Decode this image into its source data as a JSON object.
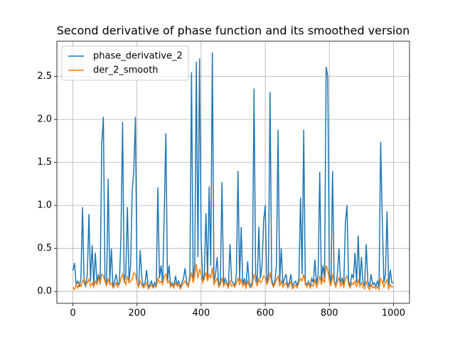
{
  "chart_data": {
    "type": "line",
    "title": "Second derivative of phase function and its smoothed version",
    "x": [
      0,
      5,
      10,
      15,
      20,
      25,
      30,
      35,
      40,
      45,
      50,
      55,
      60,
      65,
      70,
      75,
      80,
      85,
      90,
      95,
      100,
      105,
      110,
      115,
      120,
      125,
      130,
      135,
      140,
      145,
      150,
      155,
      160,
      165,
      170,
      175,
      180,
      185,
      190,
      195,
      200,
      205,
      210,
      215,
      220,
      225,
      230,
      235,
      240,
      245,
      250,
      255,
      260,
      265,
      270,
      275,
      280,
      285,
      290,
      295,
      300,
      305,
      310,
      315,
      320,
      325,
      330,
      335,
      340,
      345,
      350,
      355,
      360,
      365,
      370,
      375,
      380,
      385,
      390,
      395,
      400,
      405,
      410,
      415,
      420,
      425,
      430,
      435,
      440,
      445,
      450,
      455,
      460,
      465,
      470,
      475,
      480,
      485,
      490,
      495,
      500,
      505,
      510,
      515,
      520,
      525,
      530,
      535,
      540,
      545,
      550,
      555,
      560,
      565,
      570,
      575,
      580,
      585,
      590,
      595,
      600,
      605,
      610,
      615,
      620,
      625,
      630,
      635,
      640,
      645,
      650,
      655,
      660,
      665,
      670,
      675,
      680,
      685,
      690,
      695,
      700,
      705,
      710,
      715,
      720,
      725,
      730,
      735,
      740,
      745,
      750,
      755,
      760,
      765,
      770,
      775,
      780,
      785,
      790,
      795,
      800,
      805,
      810,
      815,
      820,
      825,
      830,
      835,
      840,
      845,
      850,
      855,
      860,
      865,
      870,
      875,
      880,
      885,
      890,
      895,
      900,
      905,
      910,
      915,
      920,
      925,
      930,
      935,
      940,
      945,
      950,
      955,
      960,
      965,
      970,
      975,
      980,
      985,
      990,
      995,
      1000
    ],
    "series": [
      {
        "name": "phase_derivative_2",
        "color": "#1f77b4",
        "values": [
          0.24,
          0.33,
          0.08,
          0.12,
          0.05,
          0.15,
          0.98,
          0.1,
          0.06,
          0.2,
          0.9,
          0.12,
          0.54,
          0.07,
          0.45,
          0.1,
          0.2,
          0.08,
          1.72,
          2.03,
          0.15,
          0.06,
          1.31,
          0.1,
          0.5,
          0.05,
          0.12,
          0.2,
          0.08,
          0.1,
          0.65,
          1.97,
          0.1,
          0.2,
          0.98,
          0.12,
          0.3,
          1.17,
          1.4,
          2.03,
          0.1,
          0.05,
          0.48,
          0.15,
          0.06,
          0.1,
          0.25,
          0.04,
          0.08,
          0.12,
          0.05,
          0.1,
          0.06,
          1.21,
          0.15,
          0.3,
          0.1,
          0.91,
          1.84,
          0.12,
          0.3,
          0.06,
          0.1,
          0.05,
          0.18,
          0.08,
          0.12,
          0.05,
          0.1,
          0.15,
          0.27,
          0.1,
          0.06,
          0.2,
          2.55,
          0.15,
          0.3,
          2.67,
          0.4,
          2.71,
          0.59,
          0.12,
          0.2,
          0.91,
          0.15,
          1.22,
          0.3,
          2.78,
          0.1,
          0.2,
          0.4,
          0.06,
          0.12,
          1.27,
          0.08,
          0.15,
          0.1,
          0.05,
          0.55,
          0.12,
          0.1,
          0.06,
          0.2,
          1.4,
          0.12,
          0.75,
          0.08,
          0.15,
          0.05,
          0.35,
          0.1,
          0.06,
          0.12,
          2.36,
          0.2,
          0.1,
          0.75,
          0.15,
          0.3,
          0.82,
          1.0,
          0.1,
          0.2,
          2.32,
          0.15,
          0.06,
          0.12,
          0.3,
          1.88,
          0.1,
          0.5,
          0.08,
          0.15,
          0.2,
          0.06,
          0.1,
          0.2,
          0.05,
          0.1,
          0.12,
          0.06,
          0.15,
          1.09,
          0.2,
          1.88,
          0.1,
          0.08,
          0.12,
          0.05,
          0.15,
          0.1,
          0.37,
          0.08,
          0.2,
          1.39,
          0.12,
          0.3,
          0.15,
          2.61,
          2.5,
          0.2,
          0.1,
          1.4,
          0.12,
          0.06,
          0.2,
          0.5,
          0.1,
          0.15,
          0.08,
          0.8,
          1.0,
          0.12,
          0.06,
          0.2,
          0.15,
          0.45,
          0.1,
          0.65,
          0.08,
          0.4,
          0.1,
          0.06,
          0.55,
          0.12,
          0.05,
          0.2,
          0.08,
          0.1,
          0.06,
          0.12,
          0.05,
          1.74,
          0.85,
          0.1,
          0.2,
          0.93,
          0.06,
          0.25,
          0.1,
          0.1
        ]
      },
      {
        "name": "der_2_smooth",
        "color": "#ff7f0e",
        "values": [
          0.05,
          0.02,
          0.08,
          0.04,
          0.1,
          0.06,
          0.12,
          0.15,
          0.08,
          0.1,
          0.14,
          0.06,
          0.1,
          0.05,
          0.12,
          0.08,
          0.15,
          0.1,
          0.2,
          0.18,
          0.12,
          0.06,
          0.15,
          0.08,
          0.1,
          0.04,
          0.06,
          0.1,
          0.05,
          0.08,
          0.15,
          0.2,
          0.12,
          0.08,
          0.18,
          0.1,
          0.12,
          0.14,
          0.22,
          0.2,
          0.1,
          0.05,
          0.12,
          0.08,
          0.04,
          0.06,
          0.1,
          0.03,
          0.05,
          0.08,
          0.04,
          0.06,
          0.05,
          0.15,
          0.1,
          0.12,
          0.08,
          0.18,
          0.2,
          0.1,
          0.12,
          0.05,
          0.08,
          0.04,
          0.1,
          0.06,
          0.08,
          0.03,
          0.06,
          0.1,
          0.12,
          0.08,
          0.05,
          0.14,
          0.22,
          0.1,
          0.18,
          0.32,
          0.15,
          0.26,
          0.2,
          0.1,
          0.15,
          0.22,
          0.12,
          0.2,
          0.15,
          0.28,
          0.08,
          0.12,
          0.15,
          0.05,
          0.08,
          0.16,
          0.06,
          0.1,
          0.08,
          0.04,
          0.12,
          0.06,
          0.08,
          0.05,
          0.1,
          0.15,
          0.08,
          0.14,
          0.06,
          0.1,
          0.04,
          0.12,
          0.06,
          0.04,
          0.08,
          0.2,
          0.12,
          0.06,
          0.15,
          0.1,
          0.12,
          0.18,
          0.16,
          0.08,
          0.12,
          0.22,
          0.1,
          0.05,
          0.08,
          0.14,
          0.18,
          0.06,
          0.12,
          0.05,
          0.08,
          0.1,
          0.04,
          0.06,
          0.12,
          0.03,
          0.05,
          0.08,
          0.04,
          0.1,
          0.15,
          0.12,
          0.2,
          0.08,
          0.05,
          0.1,
          0.04,
          0.08,
          0.06,
          0.14,
          0.05,
          0.1,
          0.18,
          0.08,
          0.15,
          0.1,
          0.3,
          0.25,
          0.12,
          0.06,
          0.2,
          0.1,
          0.05,
          0.12,
          0.16,
          0.06,
          0.1,
          0.05,
          0.15,
          0.18,
          0.08,
          0.04,
          0.1,
          0.08,
          0.12,
          0.05,
          0.14,
          0.06,
          0.1,
          0.05,
          0.03,
          0.12,
          0.06,
          0.02,
          0.08,
          0.04,
          0.06,
          0.03,
          0.06,
          0.02,
          0.15,
          0.12,
          0.05,
          0.1,
          0.14,
          0.03,
          0.08,
          0.05,
          0.06
        ]
      }
    ],
    "xlim": [
      -50,
      1050
    ],
    "ylim": [
      -0.139,
      2.91
    ],
    "xticks": [
      0,
      200,
      400,
      600,
      800,
      1000
    ],
    "yticks": [
      {
        "value": 0,
        "label": "0.0"
      },
      0.5,
      {
        "value": 1,
        "label": "1.0"
      },
      1.5,
      {
        "value": 2,
        "label": "2.0"
      },
      2.5
    ],
    "grid": true,
    "legend": "upper left"
  }
}
